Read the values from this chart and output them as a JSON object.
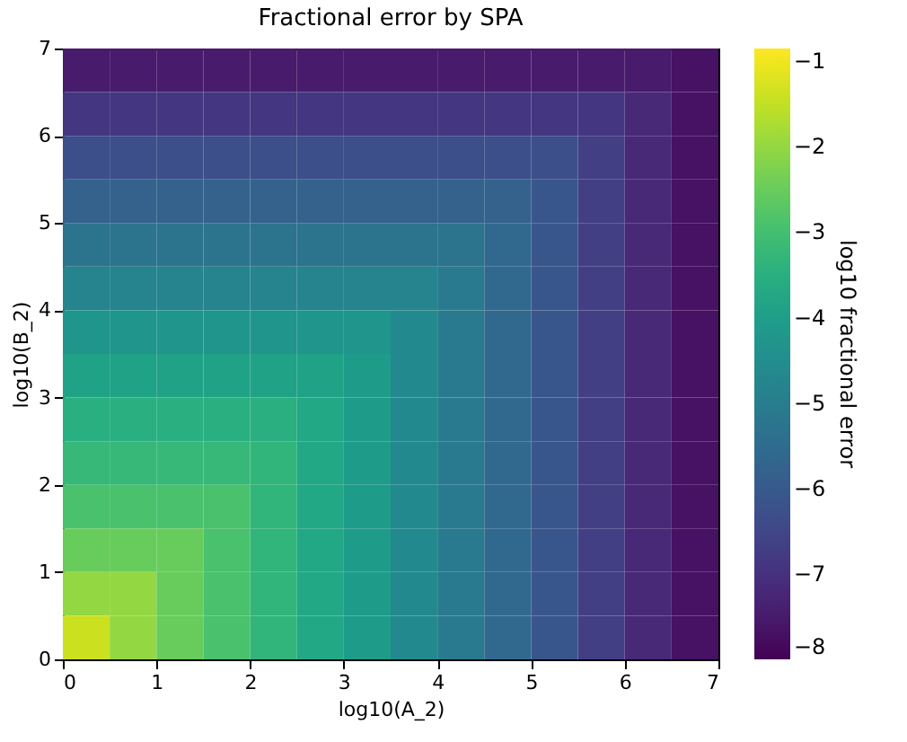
{
  "chart_data": {
    "type": "heatmap",
    "title": "Fractional error by SPA",
    "xlabel": "log10(A_2)",
    "ylabel": "log10(B_2)",
    "clabel": "log10 fractional error",
    "xlim": [
      0,
      7
    ],
    "xticks": [
      0,
      1,
      2,
      3,
      4,
      5,
      6,
      7
    ],
    "ylim": [
      0,
      7
    ],
    "yticks": [
      0,
      1,
      2,
      3,
      4,
      5,
      6,
      7
    ],
    "clim": [
      -8,
      -0.85
    ],
    "cticks": [
      -8,
      -7,
      -6,
      -5,
      -4,
      -3,
      -2,
      -1
    ],
    "grid": false,
    "cells": [
      [
        -7.5,
        -7.5,
        -7.5,
        -7.5,
        -7.5,
        -7.5,
        -7.5,
        -7.5,
        -7.5,
        -7.5,
        -7.5,
        -7.5,
        -7.5,
        -7.7
      ],
      [
        -6.9,
        -6.9,
        -6.9,
        -6.9,
        -6.9,
        -6.9,
        -6.9,
        -6.9,
        -6.9,
        -6.9,
        -6.9,
        -6.9,
        -7.2,
        -7.7
      ],
      [
        -6.3,
        -6.3,
        -6.3,
        -6.3,
        -6.3,
        -6.3,
        -6.3,
        -6.3,
        -6.3,
        -6.3,
        -6.3,
        -6.7,
        -7.2,
        -7.7
      ],
      [
        -5.8,
        -5.8,
        -5.8,
        -5.8,
        -5.8,
        -5.8,
        -5.8,
        -5.8,
        -5.8,
        -5.8,
        -6.1,
        -6.7,
        -7.2,
        -7.7
      ],
      [
        -5.3,
        -5.3,
        -5.3,
        -5.3,
        -5.3,
        -5.3,
        -5.3,
        -5.3,
        -5.3,
        -5.6,
        -6.1,
        -6.7,
        -7.2,
        -7.7
      ],
      [
        -4.8,
        -4.8,
        -4.8,
        -4.8,
        -4.8,
        -4.8,
        -4.8,
        -4.8,
        -5.1,
        -5.6,
        -6.1,
        -6.7,
        -7.2,
        -7.7
      ],
      [
        -4.3,
        -4.3,
        -4.3,
        -4.3,
        -4.3,
        -4.3,
        -4.3,
        -4.6,
        -5.1,
        -5.6,
        -6.1,
        -6.7,
        -7.2,
        -7.7
      ],
      [
        -3.9,
        -3.9,
        -3.9,
        -3.9,
        -3.9,
        -3.9,
        -4.1,
        -4.6,
        -5.1,
        -5.6,
        -6.1,
        -6.7,
        -7.2,
        -7.7
      ],
      [
        -3.5,
        -3.5,
        -3.5,
        -3.5,
        -3.5,
        -3.7,
        -4.1,
        -4.6,
        -5.1,
        -5.6,
        -6.1,
        -6.7,
        -7.2,
        -7.7
      ],
      [
        -3.2,
        -3.2,
        -3.2,
        -3.2,
        -3.3,
        -3.7,
        -4.1,
        -4.6,
        -5.1,
        -5.6,
        -6.1,
        -6.7,
        -7.2,
        -7.7
      ],
      [
        -2.9,
        -2.9,
        -2.9,
        -2.9,
        -3.3,
        -3.7,
        -4.1,
        -4.6,
        -5.1,
        -5.6,
        -6.1,
        -6.7,
        -7.2,
        -7.7
      ],
      [
        -2.5,
        -2.5,
        -2.5,
        -2.9,
        -3.3,
        -3.7,
        -4.1,
        -4.6,
        -5.1,
        -5.6,
        -6.1,
        -6.7,
        -7.2,
        -7.7
      ],
      [
        -2.0,
        -2.0,
        -2.5,
        -2.9,
        -3.3,
        -3.7,
        -4.1,
        -4.6,
        -5.1,
        -5.6,
        -6.1,
        -6.7,
        -7.2,
        -7.7
      ],
      [
        -1.4,
        -2.0,
        -2.5,
        -2.9,
        -3.3,
        -3.7,
        -4.1,
        -4.6,
        -5.1,
        -5.6,
        -6.1,
        -6.7,
        -7.2,
        -7.7
      ]
    ]
  }
}
